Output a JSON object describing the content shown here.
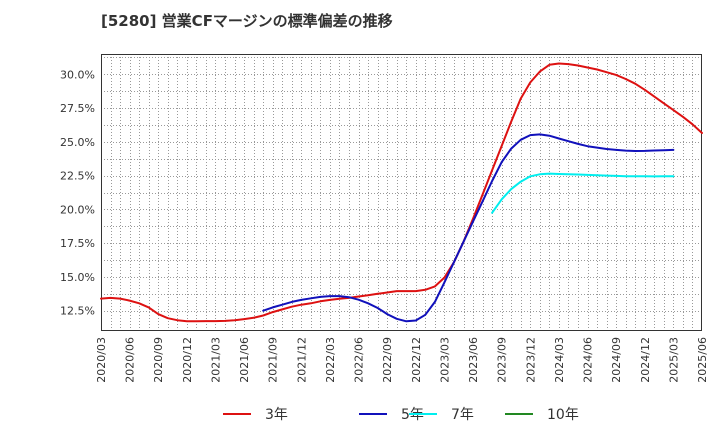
{
  "chart_data": {
    "type": "line",
    "title": "[5280]  営業CFマージンの標準偏差の推移",
    "xlabel": "",
    "ylabel": "",
    "ylim": [
      11.0,
      31.5
    ],
    "y_ticks": [
      "12.5%",
      "15.0%",
      "17.5%",
      "20.0%",
      "22.5%",
      "25.0%",
      "27.5%",
      "30.0%"
    ],
    "y_tick_values": [
      12.5,
      15.0,
      17.5,
      20.0,
      22.5,
      25.0,
      27.5,
      30.0
    ],
    "x_ticks": [
      "2020/03",
      "2020/06",
      "2020/09",
      "2020/12",
      "2021/03",
      "2021/06",
      "2021/09",
      "2021/12",
      "2022/03",
      "2022/06",
      "2022/09",
      "2022/12",
      "2023/03",
      "2023/06",
      "2023/09",
      "2023/12",
      "2024/03",
      "2024/06",
      "2024/09",
      "2024/12",
      "2025/03",
      "2025/06"
    ],
    "grid": true,
    "legend_position": "bottom",
    "series": [
      {
        "name": "3年",
        "color": "#dd1111",
        "start": "2020/03",
        "values": [
          13.4,
          13.45,
          13.4,
          13.25,
          13.05,
          12.75,
          12.25,
          11.95,
          11.8,
          11.72,
          11.72,
          11.73,
          11.73,
          11.75,
          11.8,
          11.88,
          11.98,
          12.15,
          12.4,
          12.6,
          12.8,
          12.95,
          13.05,
          13.2,
          13.3,
          13.38,
          13.45,
          13.55,
          13.65,
          13.75,
          13.85,
          13.95,
          13.95,
          13.95,
          14.05,
          14.3,
          14.95,
          16.1,
          17.6,
          19.3,
          21.1,
          22.9,
          24.7,
          26.5,
          28.2,
          29.4,
          30.2,
          30.7,
          30.8,
          30.75,
          30.65,
          30.5,
          30.35,
          30.15,
          29.95,
          29.65,
          29.3,
          28.85,
          28.35,
          27.85,
          27.35,
          26.85,
          26.3,
          25.65
        ]
      },
      {
        "name": "5年",
        "color": "#1111bb",
        "start": "2021/08",
        "values": [
          12.5,
          12.75,
          12.95,
          13.15,
          13.3,
          13.42,
          13.52,
          13.58,
          13.58,
          13.5,
          13.32,
          13.05,
          12.7,
          12.25,
          11.9,
          11.72,
          11.78,
          12.2,
          13.15,
          14.6,
          16.1,
          17.6,
          19.1,
          20.6,
          22.1,
          23.5,
          24.5,
          25.15,
          25.5,
          25.55,
          25.45,
          25.25,
          25.05,
          24.85,
          24.68,
          24.57,
          24.47,
          24.4,
          24.35,
          24.32,
          24.33,
          24.36,
          24.38,
          24.4
        ]
      },
      {
        "name": "7年",
        "color": "#00eeee",
        "start": "2023/08",
        "values": [
          19.75,
          20.75,
          21.5,
          22.05,
          22.45,
          22.6,
          22.65,
          22.62,
          22.6,
          22.58,
          22.55,
          22.52,
          22.5,
          22.48,
          22.46,
          22.45,
          22.45,
          22.44,
          22.45,
          22.45
        ]
      },
      {
        "name": "10年",
        "color": "#228822",
        "start": "",
        "values": []
      }
    ]
  }
}
